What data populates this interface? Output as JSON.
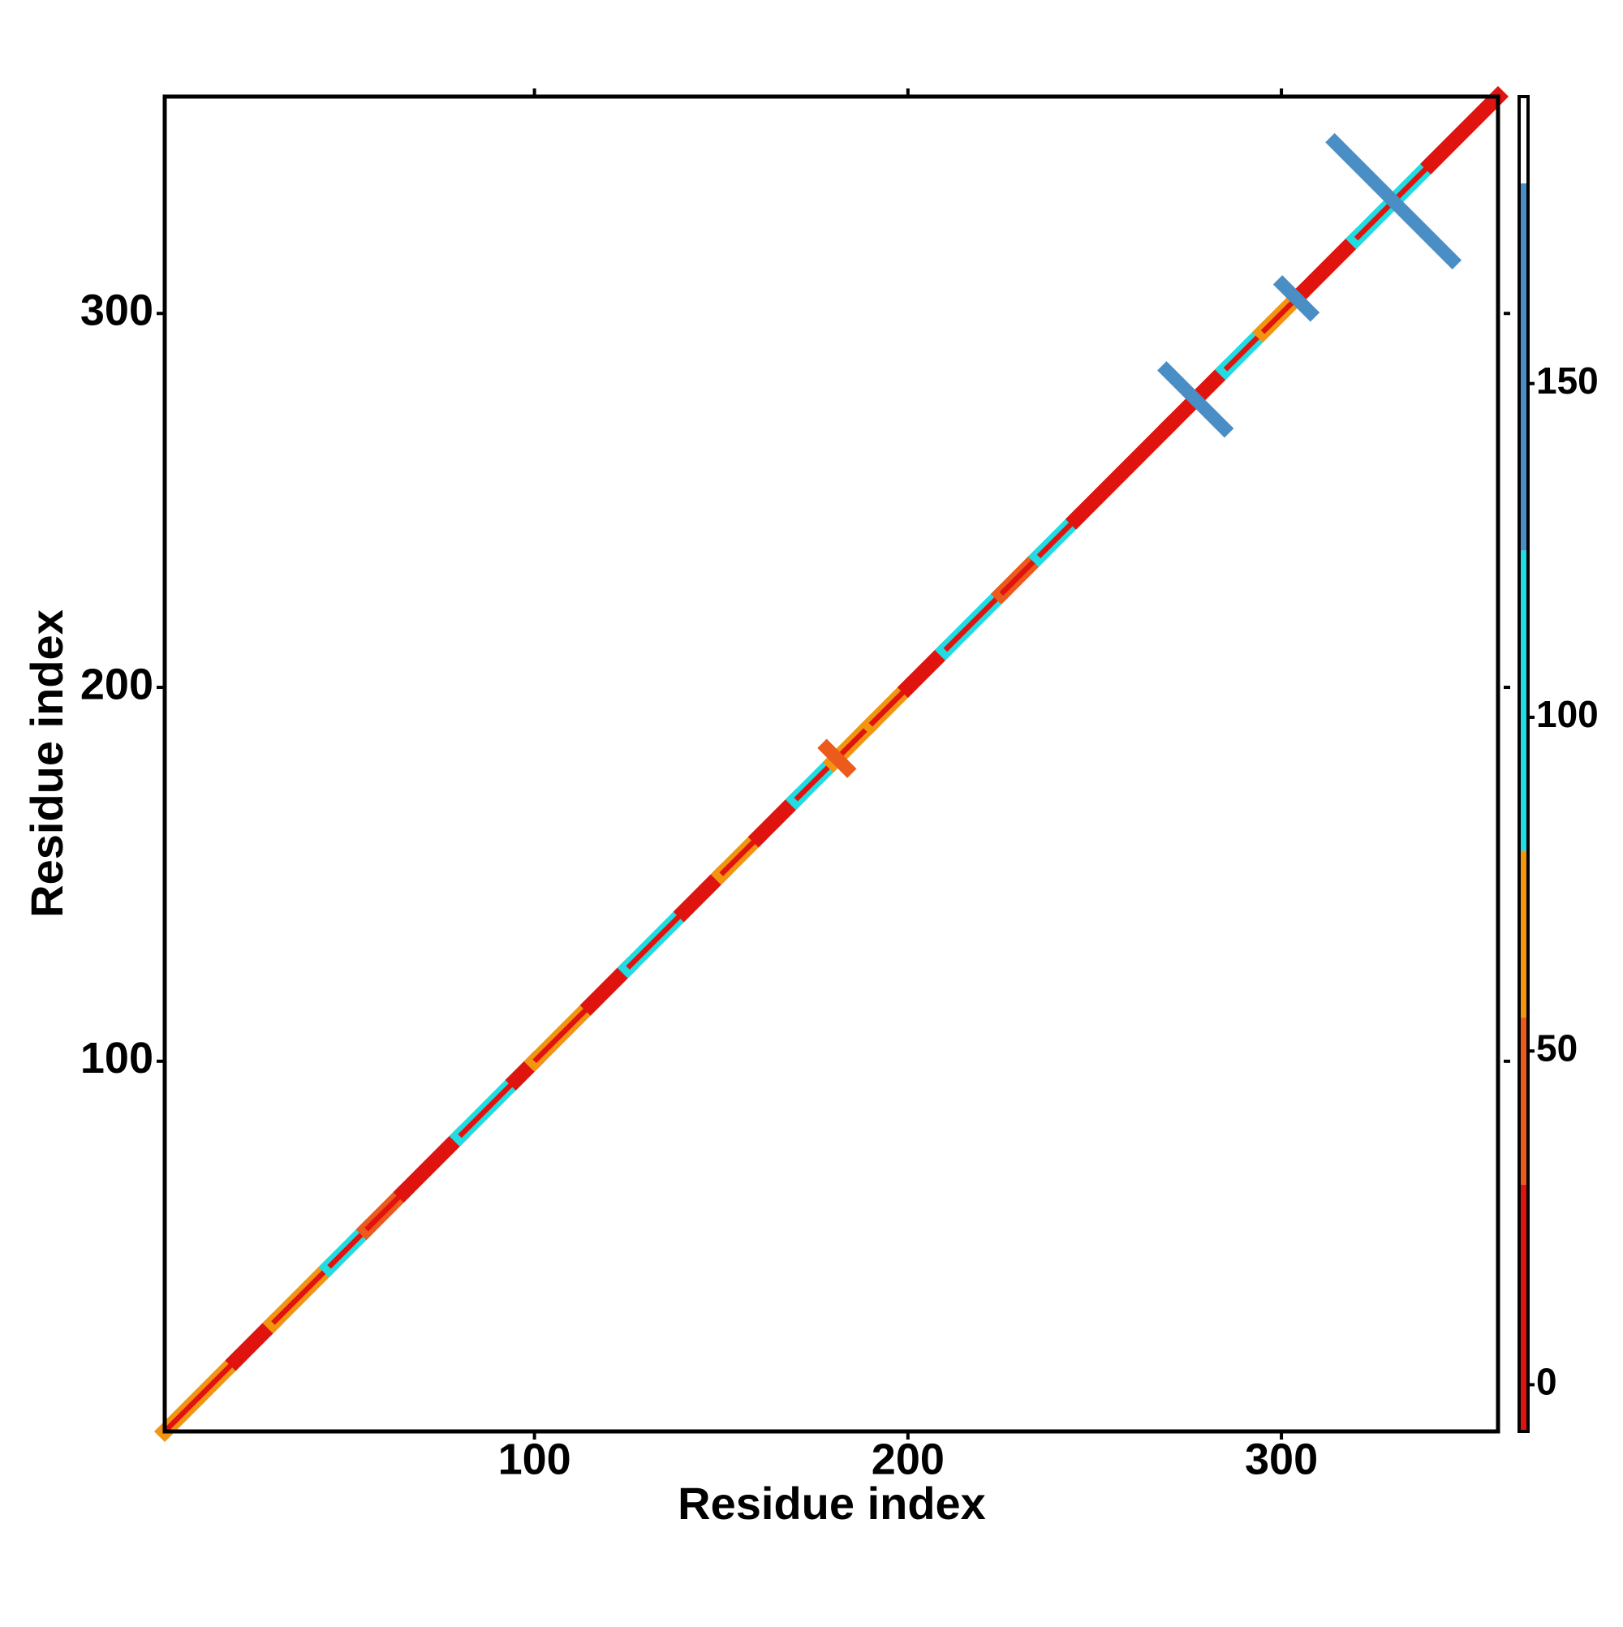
{
  "chart_data": {
    "type": "contact-map",
    "xlabel": "Residue index",
    "ylabel": "Residue index",
    "xlim": [
      1,
      358
    ],
    "ylim": [
      1,
      358
    ],
    "xticks": [
      100,
      200,
      300
    ],
    "yticks": [
      100,
      200,
      300
    ],
    "segments": [
      {
        "start": 1,
        "end": 20,
        "value": 60
      },
      {
        "start": 20,
        "end": 30,
        "value": 20
      },
      {
        "start": 30,
        "end": 45,
        "value": 70
      },
      {
        "start": 45,
        "end": 55,
        "value": 90
      },
      {
        "start": 55,
        "end": 65,
        "value": 45
      },
      {
        "start": 65,
        "end": 80,
        "value": 20
      },
      {
        "start": 80,
        "end": 95,
        "value": 90
      },
      {
        "start": 95,
        "end": 100,
        "value": 20
      },
      {
        "start": 100,
        "end": 115,
        "value": 60
      },
      {
        "start": 115,
        "end": 125,
        "value": 20
      },
      {
        "start": 125,
        "end": 140,
        "value": 90
      },
      {
        "start": 140,
        "end": 150,
        "value": 20
      },
      {
        "start": 150,
        "end": 160,
        "value": 60
      },
      {
        "start": 160,
        "end": 170,
        "value": 25
      },
      {
        "start": 170,
        "end": 180,
        "value": 90
      },
      {
        "start": 180,
        "end": 190,
        "value": 60
      },
      {
        "start": 190,
        "end": 200,
        "value": 70
      },
      {
        "start": 200,
        "end": 210,
        "value": 20
      },
      {
        "start": 210,
        "end": 225,
        "value": 90
      },
      {
        "start": 225,
        "end": 235,
        "value": 45
      },
      {
        "start": 235,
        "end": 245,
        "value": 90
      },
      {
        "start": 245,
        "end": 270,
        "value": 20
      },
      {
        "start": 270,
        "end": 285,
        "value": 10
      },
      {
        "start": 285,
        "end": 295,
        "value": 90
      },
      {
        "start": 295,
        "end": 305,
        "value": 60
      },
      {
        "start": 305,
        "end": 320,
        "value": 20
      },
      {
        "start": 320,
        "end": 340,
        "value": 95
      },
      {
        "start": 340,
        "end": 358,
        "value": 20
      }
    ],
    "crosses": [
      {
        "center": 181,
        "half_length": 4,
        "value": 45
      },
      {
        "center": 277,
        "half_length": 9,
        "value": 165
      },
      {
        "center": 304,
        "half_length": 5,
        "value": 140
      },
      {
        "center": 330,
        "half_length": 17,
        "value": 150
      }
    ],
    "colorbar": {
      "lim": [
        -7,
        193
      ],
      "ticks": [
        0,
        50,
        100,
        150
      ],
      "bins": [
        -7,
        30,
        55,
        80,
        125,
        180,
        193
      ],
      "colors": [
        "#e0140f",
        "#ec5a1c",
        "#f2960f",
        "#22dce4",
        "#4a8ec6",
        "#ffffff"
      ]
    }
  }
}
